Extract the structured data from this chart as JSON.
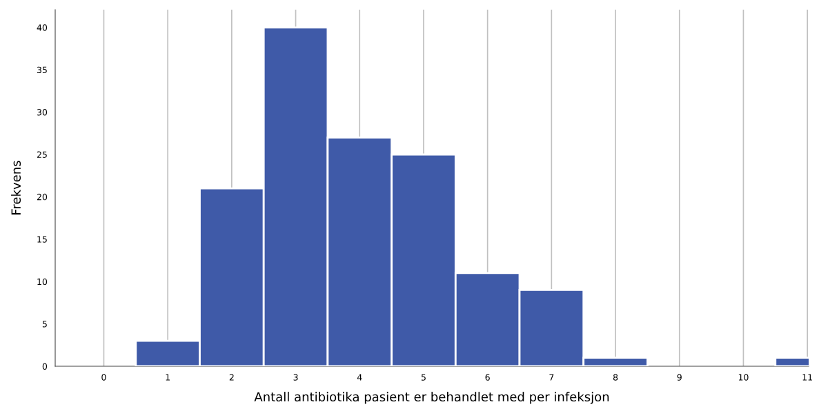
{
  "chart_data": {
    "type": "histogram",
    "xlabel": "Antall antibiotika pasient er behandlet med per infeksjon",
    "ylabel": "Frekvens",
    "bins": [
      0.5,
      1.5,
      2.5,
      3.5,
      4.5,
      5.5,
      6.5,
      7.5,
      8.5,
      9.5,
      10.5,
      11.5
    ],
    "values": [
      3,
      21,
      40,
      27,
      25,
      11,
      9,
      1,
      0,
      0,
      1
    ],
    "color": "#3f5aa8",
    "xlim": [
      -0.76,
      11.02
    ],
    "xticks": [
      0,
      1,
      2,
      3,
      4,
      5,
      6,
      7,
      8,
      9,
      10,
      11
    ],
    "ylim": [
      0,
      42.1
    ],
    "yticks": [
      0,
      5,
      10,
      15,
      20,
      25,
      30,
      35,
      40
    ],
    "grid": "x",
    "legend": false
  }
}
